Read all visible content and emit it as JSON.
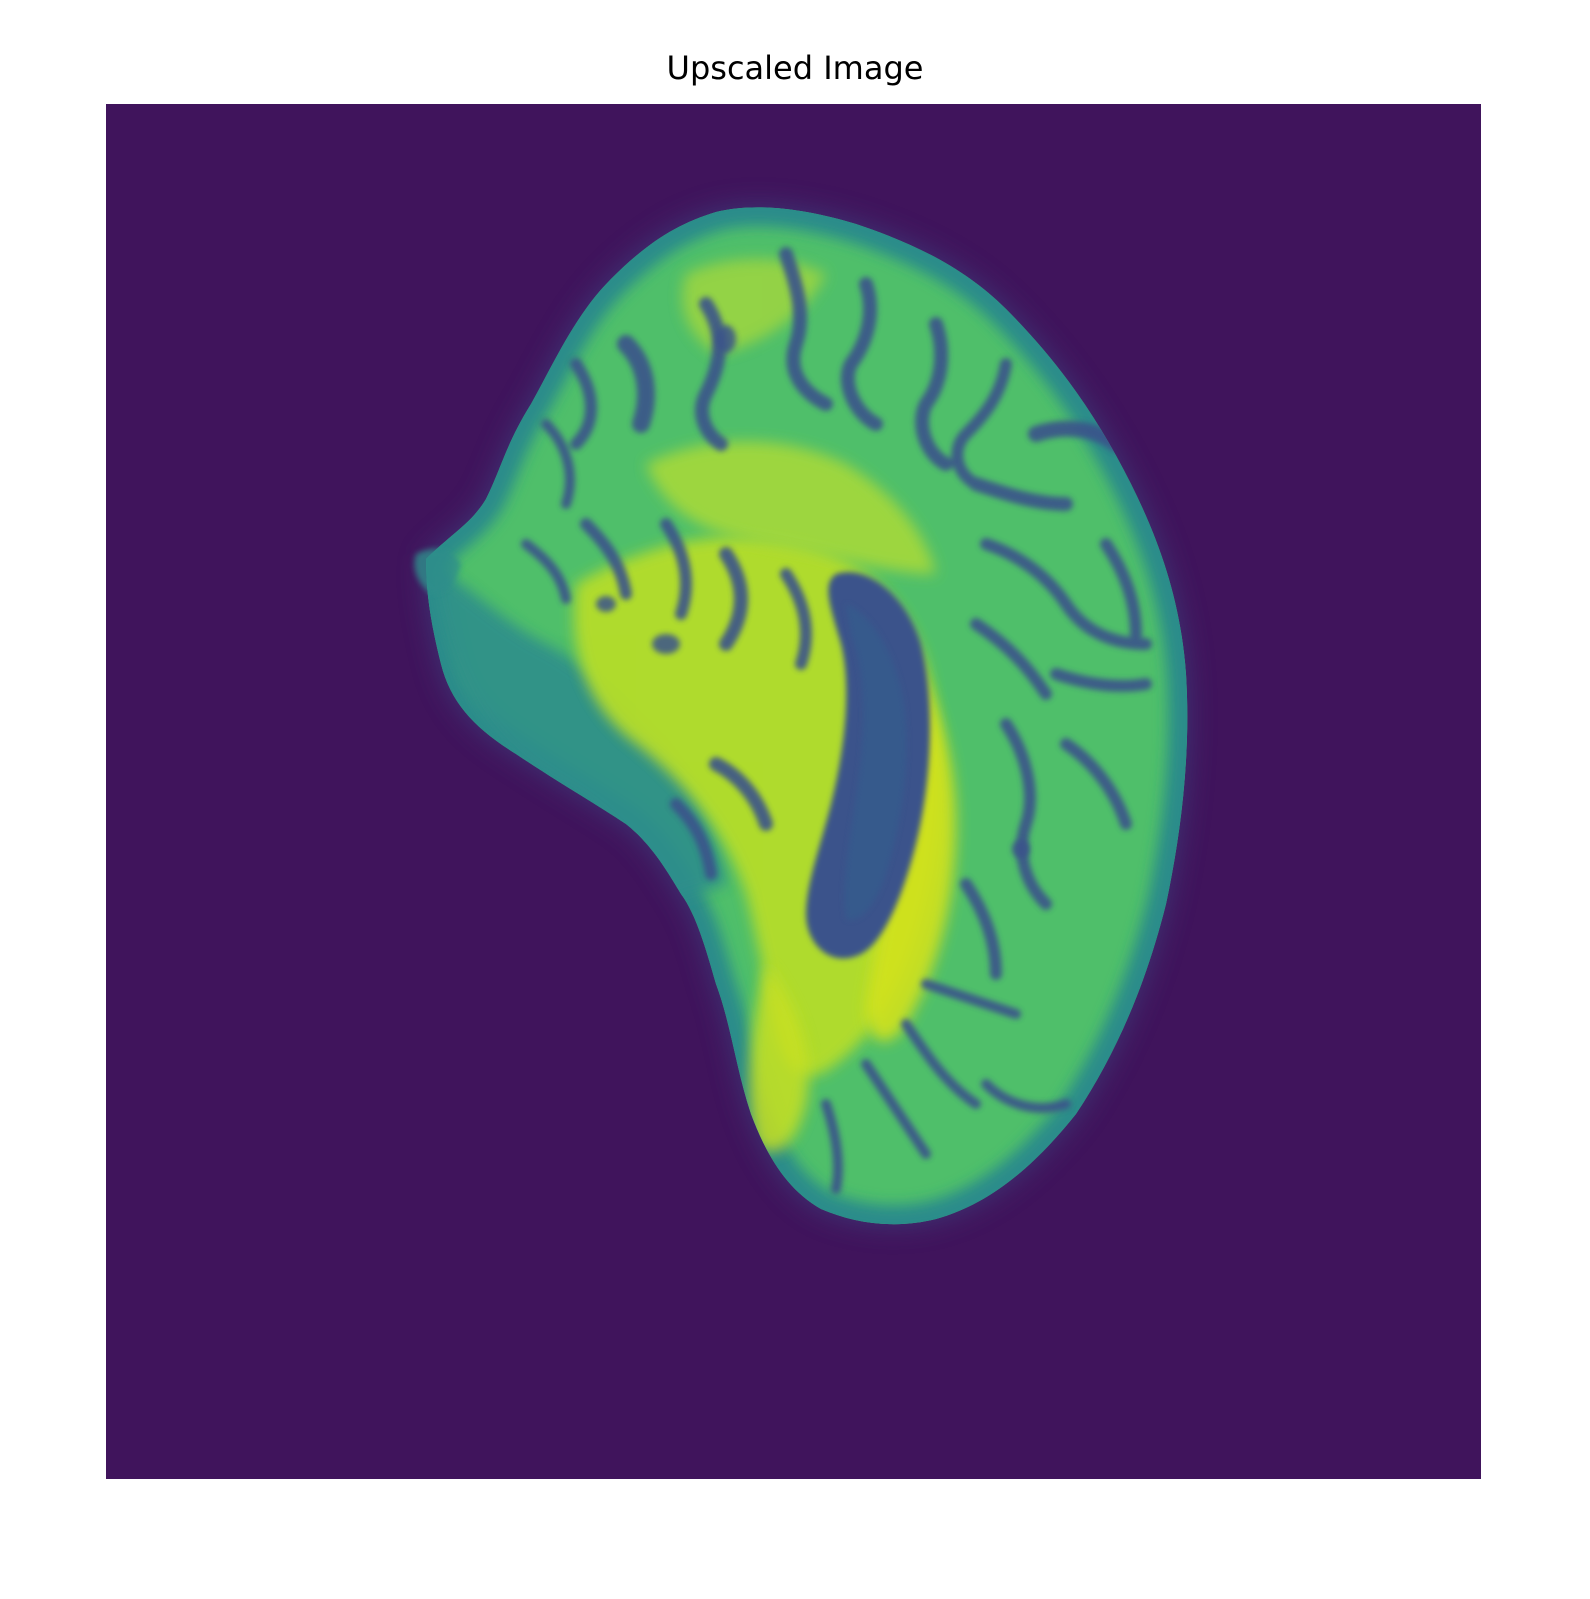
{
  "figure": {
    "title": "Upscaled Image"
  },
  "image": {
    "subject": "brain-mri-slice",
    "colormap": "viridis",
    "colors": {
      "background": "#40145c",
      "dark": "#3b528b",
      "mid": "#21918c",
      "bright": "#5ec962",
      "brightest": "#c8e020"
    }
  }
}
